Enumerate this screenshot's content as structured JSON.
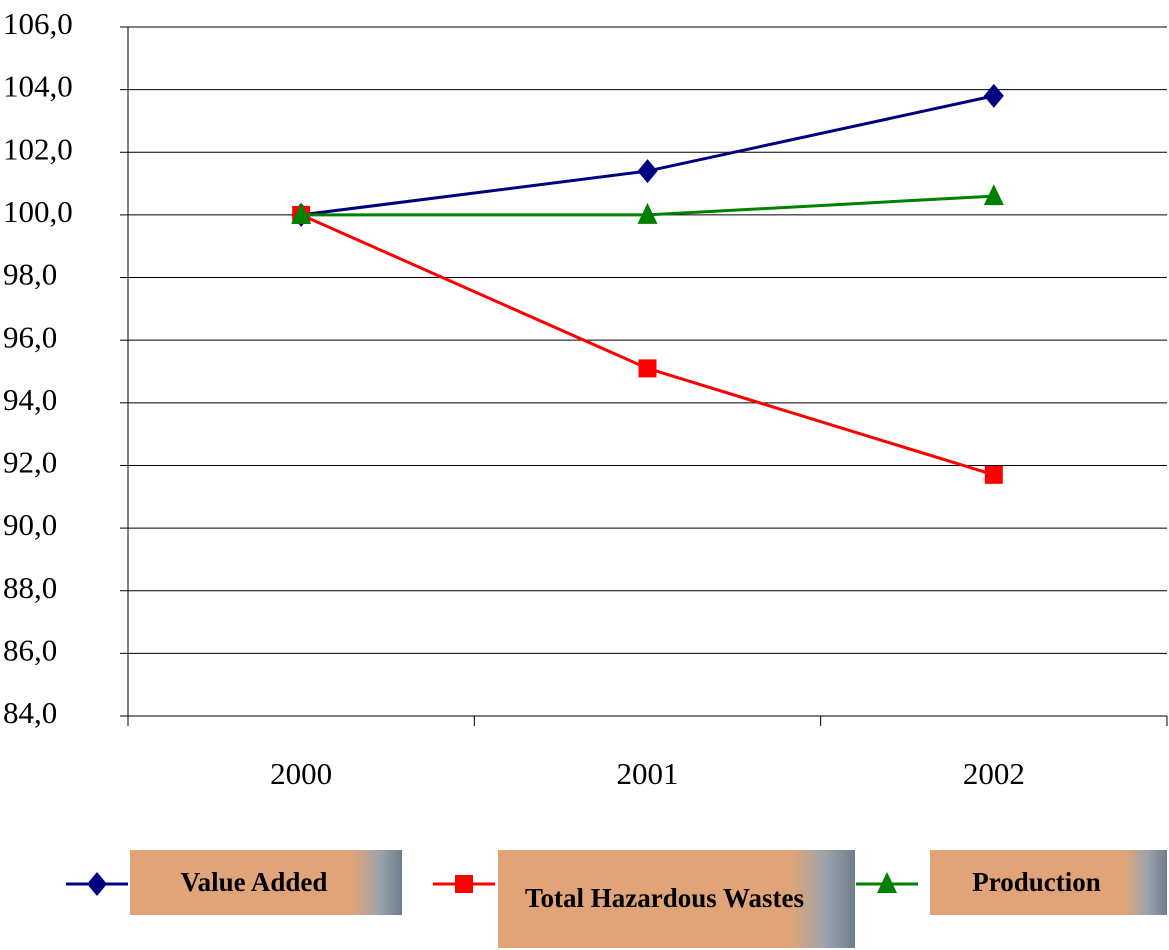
{
  "chart_data": {
    "type": "line",
    "categories": [
      "2000",
      "2001",
      "2002"
    ],
    "series": [
      {
        "name": "Value Added",
        "color": "#000080",
        "marker": "diamond",
        "values": [
          100,
          101.4,
          103.8
        ]
      },
      {
        "name": "Total Hazardous Wastes",
        "color": "#ff0000",
        "marker": "square",
        "values": [
          100,
          95.1,
          91.7
        ]
      },
      {
        "name": "Production",
        "color": "#008000",
        "marker": "triangle",
        "values": [
          100,
          100,
          100.6
        ]
      }
    ],
    "ylim": [
      84,
      106
    ],
    "yticks": [
      {
        "value": 84,
        "label": "84,0"
      },
      {
        "value": 86,
        "label": "86,0"
      },
      {
        "value": 88,
        "label": "88,0"
      },
      {
        "value": 90,
        "label": "90,0"
      },
      {
        "value": 92,
        "label": "92,0"
      },
      {
        "value": 94,
        "label": "94,0"
      },
      {
        "value": 96,
        "label": "96,0"
      },
      {
        "value": 98,
        "label": "98,0"
      },
      {
        "value": 100,
        "label": "100,0"
      },
      {
        "value": 102,
        "label": "102,0"
      },
      {
        "value": 104,
        "label": "104,0"
      },
      {
        "value": 106,
        "label": "106,0"
      }
    ],
    "grid": true,
    "legend": "bottom"
  }
}
